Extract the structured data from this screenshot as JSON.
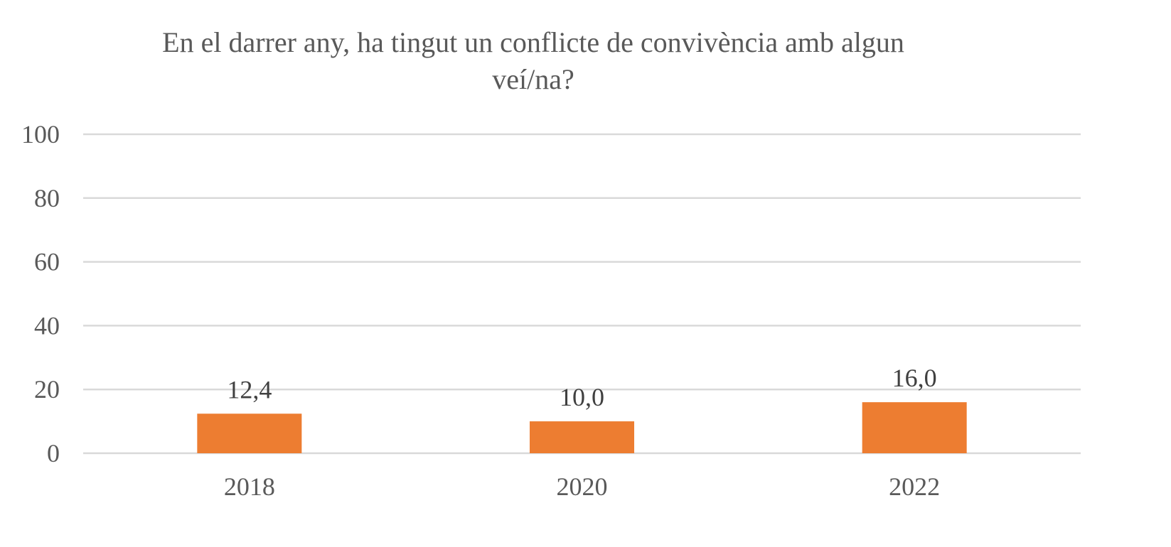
{
  "chart_data": {
    "type": "bar",
    "title_line1": "En el darrer any, ha tingut un conflicte de convivència amb algun",
    "title_line2": "veí/na?",
    "categories": [
      "2018",
      "2020",
      "2022"
    ],
    "values": [
      12.4,
      10.0,
      16.0
    ],
    "data_labels": [
      "12,4",
      "10,0",
      "16,0"
    ],
    "ylim": [
      0,
      100
    ],
    "yticks": [
      "0",
      "20",
      "40",
      "60",
      "80",
      "100"
    ],
    "ytick_values": [
      0,
      20,
      40,
      60,
      80,
      100
    ],
    "grid": true,
    "legend": "none",
    "bar_color": "#ED7D31",
    "grid_color": "#D9D9D9"
  }
}
